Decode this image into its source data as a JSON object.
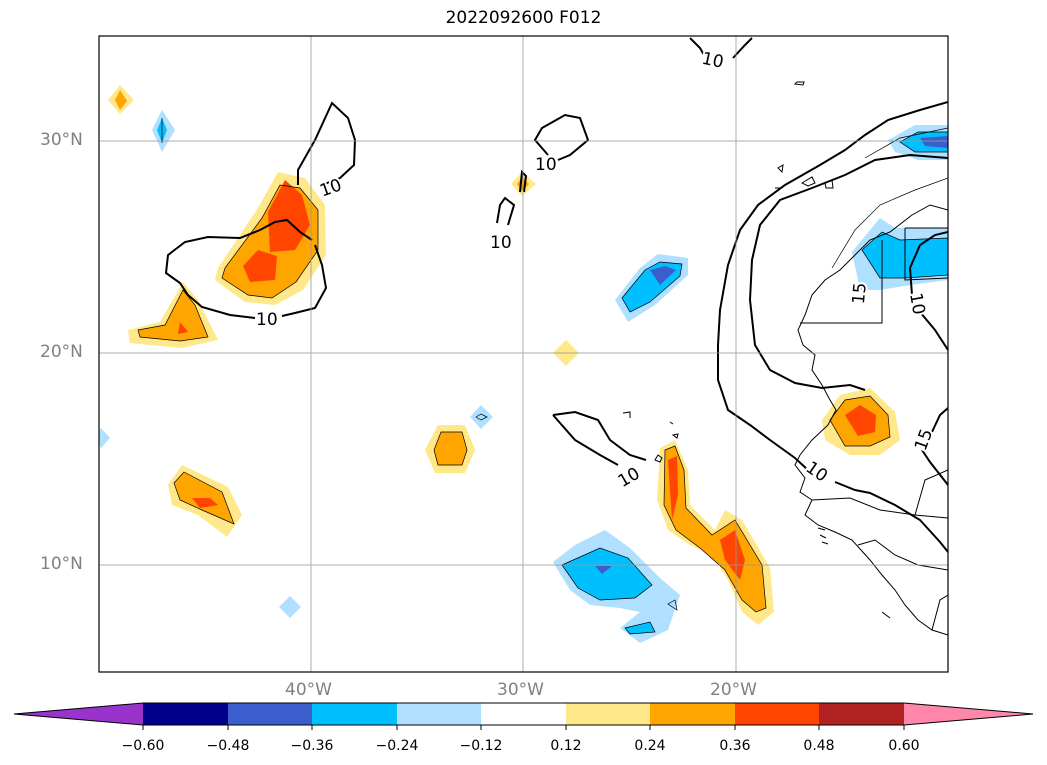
{
  "title": "2022092600 F012",
  "lat_labels": [
    "30°N",
    "20°N",
    "10°N"
  ],
  "lon_labels": [
    "40°W",
    "30°W",
    "20°W"
  ],
  "contour_labels": [
    "10",
    "10",
    "10",
    "10",
    "10",
    "10",
    "10",
    "15",
    "10",
    "15"
  ],
  "colorbar": {
    "ticks": [
      "−0.60",
      "−0.48",
      "−0.36",
      "−0.24",
      "−0.12",
      "0.12",
      "0.24",
      "0.36",
      "0.48",
      "0.60"
    ],
    "colors": [
      "#9933cc",
      "#00008b",
      "#3a5fcd",
      "#00bfff",
      "#b0e0ff",
      "#ffffff",
      "#ffe88a",
      "#ffa500",
      "#ff4500",
      "#b22222",
      "#ff88aa"
    ]
  },
  "map_extent": {
    "lon": [
      -50,
      -10
    ],
    "lat": [
      5,
      35
    ]
  }
}
